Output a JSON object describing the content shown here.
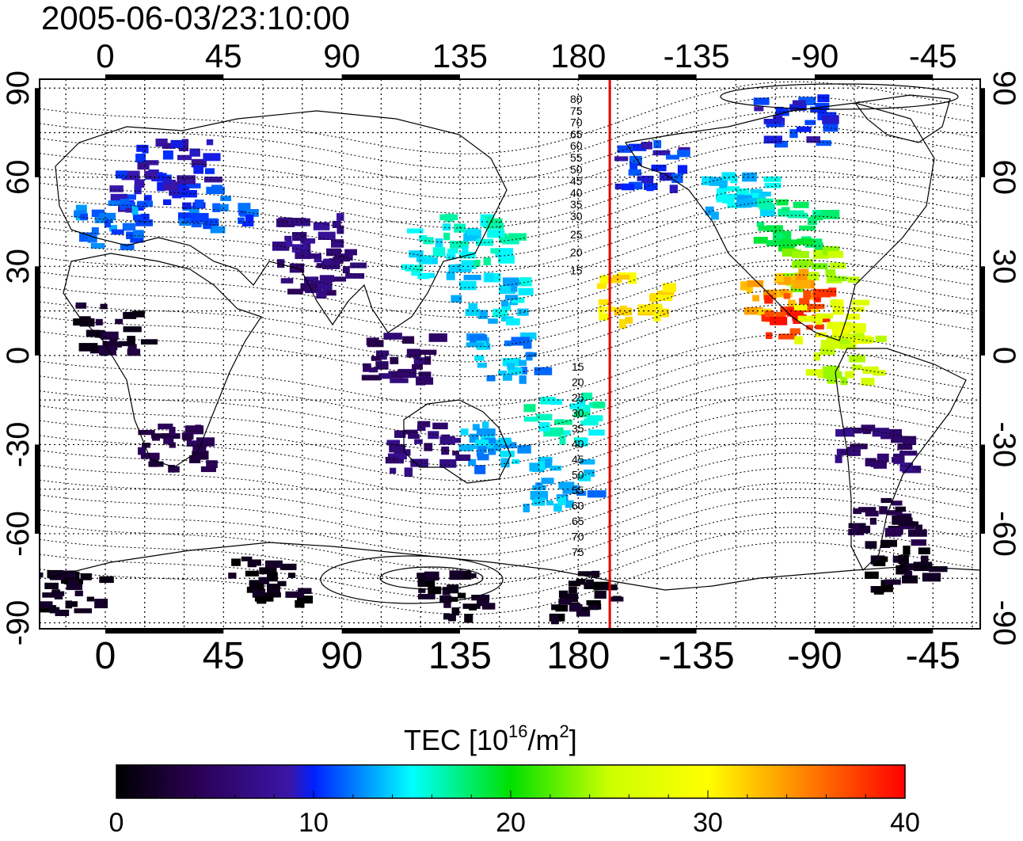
{
  "title": "2005-06-03/23:10:00",
  "map": {
    "lon_ticks": [
      "0",
      "45",
      "90",
      "135",
      "180",
      "-135",
      "-90",
      "-45"
    ],
    "lon_tick_values": [
      0,
      45,
      90,
      135,
      180,
      225,
      270,
      315
    ],
    "lat_ticks": [
      "90",
      "60",
      "30",
      "0",
      "-30",
      "-60",
      "-90"
    ],
    "lat_tick_values": [
      90,
      60,
      30,
      0,
      -30,
      -60,
      -90
    ],
    "lon_range": [
      -25,
      333
    ],
    "lat_range": [
      -92,
      93
    ],
    "grid": "dotted, 15 degree spacing",
    "terminator_lon": 192,
    "terminator_color": "#e00000",
    "mlat_labels_north": [
      "80",
      "75",
      "70",
      "65",
      "60",
      "55",
      "50",
      "45",
      "40",
      "35",
      "30",
      "25",
      "20",
      "15"
    ],
    "mlat_labels_south": [
      "15",
      "20",
      "25",
      "30",
      "35",
      "40",
      "45",
      "50",
      "55",
      "60",
      "65",
      "70",
      "75"
    ],
    "tec_patches": [
      {
        "lon": 15,
        "lat": 55,
        "tec": 10
      },
      {
        "lon": 40,
        "lat": 50,
        "tec": 11
      },
      {
        "lon": 0,
        "lat": 45,
        "tec": 12
      },
      {
        "lon": 25,
        "lat": 65,
        "tec": 9
      },
      {
        "lon": 75,
        "lat": 40,
        "tec": 7
      },
      {
        "lon": 125,
        "lat": 35,
        "tec": 15
      },
      {
        "lon": 140,
        "lat": 40,
        "tec": 16
      },
      {
        "lon": 145,
        "lat": 20,
        "tec": 14
      },
      {
        "lon": 150,
        "lat": 0,
        "tec": 13
      },
      {
        "lon": 145,
        "lat": -30,
        "tec": 13
      },
      {
        "lon": 172,
        "lat": -42,
        "tec": 13
      },
      {
        "lon": 172,
        "lat": -20,
        "tec": 16
      },
      {
        "lon": 25,
        "lat": -30,
        "tec": 4
      },
      {
        "lon": 120,
        "lat": -30,
        "tec": 6
      },
      {
        "lon": 110,
        "lat": 0,
        "tec": 5
      },
      {
        "lon": 80,
        "lat": 30,
        "tec": 6
      },
      {
        "lon": 205,
        "lat": 65,
        "tec": 10
      },
      {
        "lon": 240,
        "lat": 55,
        "tec": 14
      },
      {
        "lon": 260,
        "lat": 45,
        "tec": 18
      },
      {
        "lon": 270,
        "lat": 30,
        "tec": 24
      },
      {
        "lon": 255,
        "lat": 22,
        "tec": 33
      },
      {
        "lon": 262,
        "lat": 15,
        "tec": 38
      },
      {
        "lon": 275,
        "lat": 12,
        "tec": 28
      },
      {
        "lon": 280,
        "lat": 0,
        "tec": 25
      },
      {
        "lon": 290,
        "lat": -30,
        "tec": 6
      },
      {
        "lon": 295,
        "lat": -55,
        "tec": 3
      },
      {
        "lon": 300,
        "lat": -70,
        "tec": 1
      },
      {
        "lon": 260,
        "lat": 80,
        "tec": 10
      },
      {
        "lon": 200,
        "lat": 20,
        "tec": 31
      },
      {
        "lon": 130,
        "lat": -80,
        "tec": 1
      },
      {
        "lon": 60,
        "lat": -75,
        "tec": 1
      },
      {
        "lon": -15,
        "lat": -80,
        "tec": 1
      },
      {
        "lon": 180,
        "lat": -80,
        "tec": 1
      },
      {
        "lon": 0,
        "lat": 10,
        "tec": 2
      }
    ]
  },
  "colorbar": {
    "label_main": "TEC  [10",
    "label_sup1": "16",
    "label_mid": "/m",
    "label_sup2": "2",
    "label_end": "]",
    "ticks": [
      "0",
      "10",
      "20",
      "30",
      "40"
    ],
    "min": 0,
    "max": 40
  }
}
